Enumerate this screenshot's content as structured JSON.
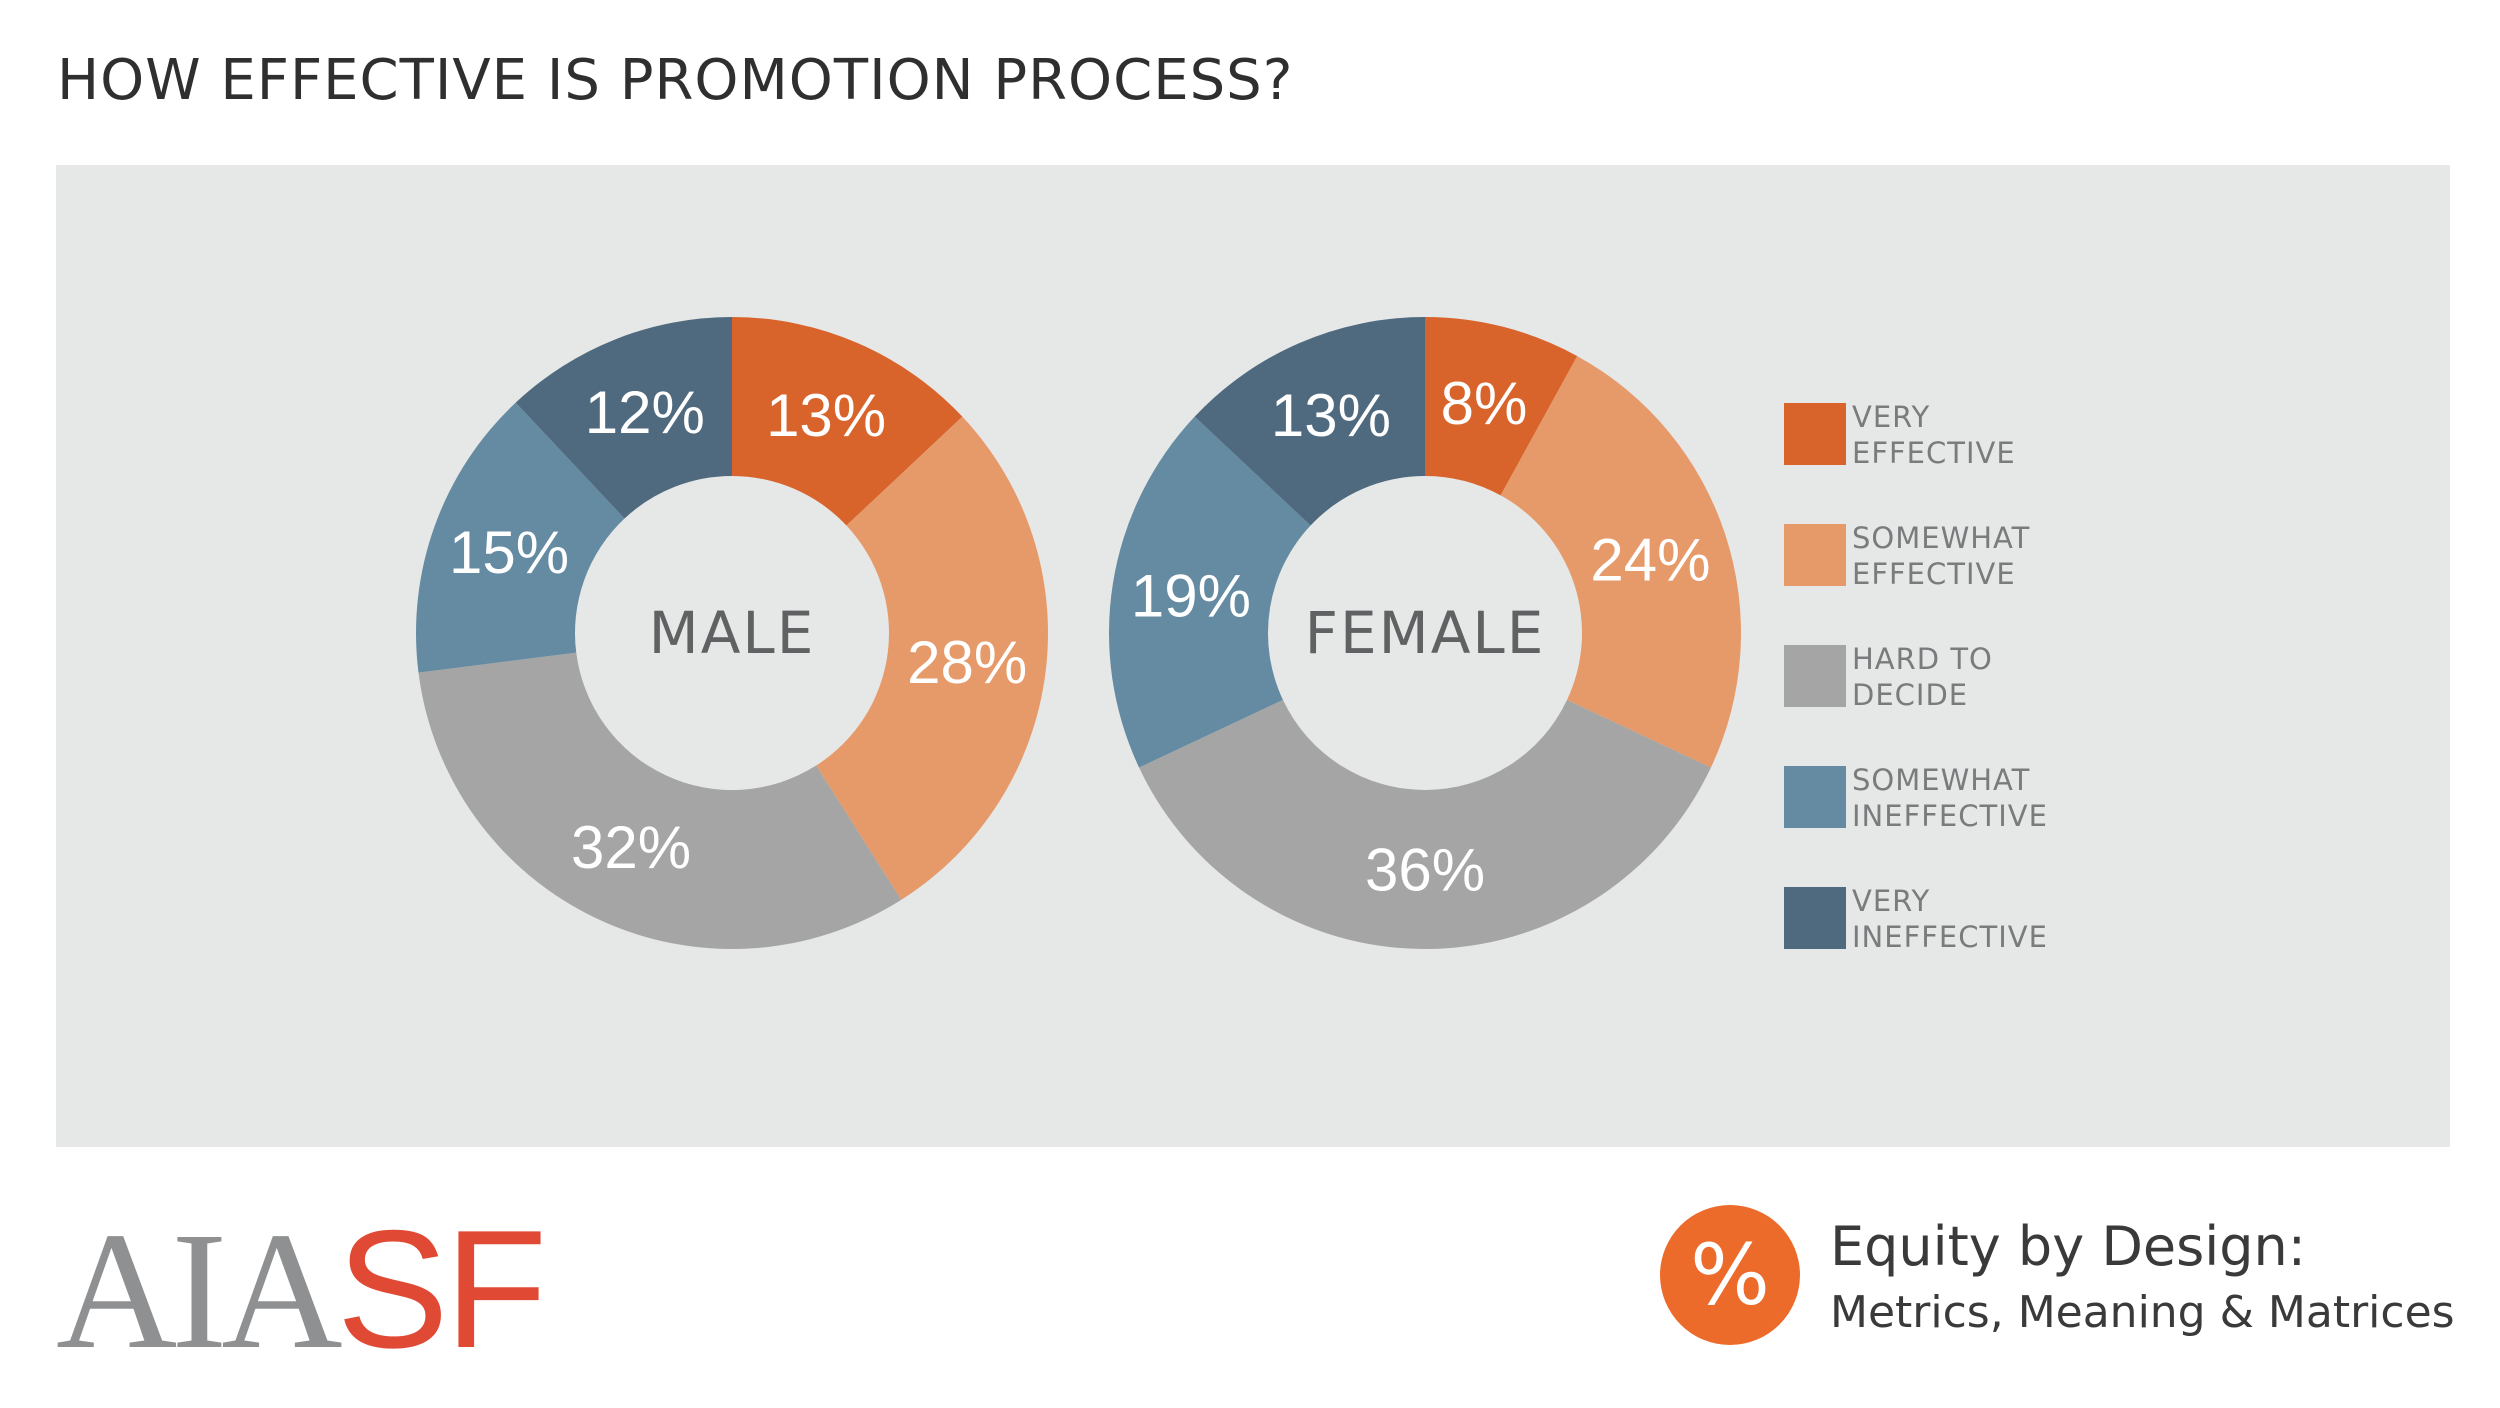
{
  "title": "HOW EFFECTIVE IS PROMOTION PROCESS?",
  "colors": {
    "very_effective": "#d8642c",
    "somewhat_effective": "#e79a69",
    "hard_to_decide": "#a5a5a5",
    "somewhat_ineffective": "#658ba3",
    "very_ineffective": "#4f6a7f",
    "panel_background": "#e6e7e7"
  },
  "chart_data": {
    "type": "pie",
    "style": "donut",
    "categories": [
      "VERY EFFECTIVE",
      "SOMEWHAT EFFECTIVE",
      "HARD TO DECIDE",
      "SOMEWHAT INEFFECTIVE",
      "VERY INEFFECTIVE"
    ],
    "series": [
      {
        "name": "MALE",
        "values": [
          13,
          28,
          32,
          15,
          12
        ],
        "labels": [
          "13%",
          "28%",
          "32%",
          "15%",
          "12%"
        ]
      },
      {
        "name": "FEMALE",
        "values": [
          8,
          24,
          36,
          19,
          13
        ],
        "labels": [
          "8%",
          "24%",
          "36%",
          "19%",
          "13%"
        ]
      }
    ],
    "legend": {
      "position": "right",
      "entries": [
        {
          "line1": "VERY",
          "line2": "EFFECTIVE"
        },
        {
          "line1": "SOMEWHAT",
          "line2": "EFFECTIVE"
        },
        {
          "line1": "HARD TO",
          "line2": "DECIDE"
        },
        {
          "line1": "SOMEWHAT",
          "line2": "INEFFECTIVE"
        },
        {
          "line1": "VERY",
          "line2": "INEFFECTIVE"
        }
      ]
    }
  },
  "footer": {
    "logo_aia": "AIA",
    "logo_sf": "SF",
    "badge_symbol": "%",
    "brand_title": "Equity by Design:",
    "brand_subtitle": "Metrics, Meaning & Matrices"
  }
}
